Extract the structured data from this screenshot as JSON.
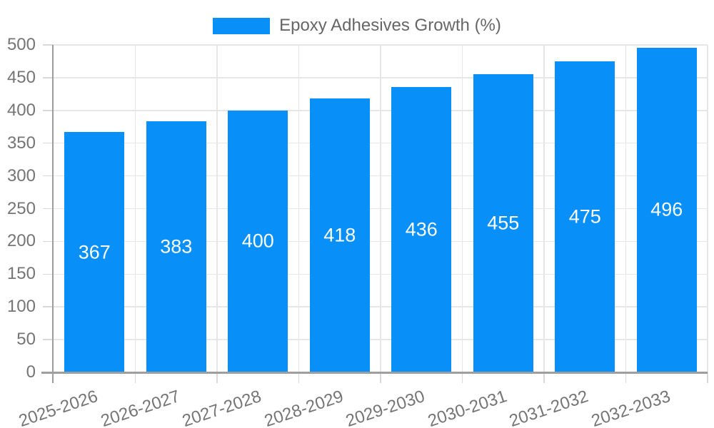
{
  "chart_data": {
    "type": "bar",
    "title": "",
    "legend": {
      "label": "Epoxy Adhesives Growth (%)",
      "position": "top"
    },
    "categories": [
      "2025-2026",
      "2026-2027",
      "2027-2028",
      "2028-2029",
      "2029-2030",
      "2030-2031",
      "2031-2032",
      "2032-2033"
    ],
    "series": [
      {
        "name": "Epoxy Adhesives Growth (%)",
        "values": [
          367,
          383,
          400,
          418,
          436,
          455,
          475,
          496
        ]
      }
    ],
    "bar_value_labels": [
      367,
      383,
      400,
      418,
      436,
      455,
      475,
      496
    ],
    "xlabel": "",
    "ylabel": "",
    "ylim": [
      0,
      500
    ],
    "ytick_step": 50,
    "grid": true,
    "colors": {
      "bar": "#0890F8",
      "grid": "#e6e6e6",
      "axis": "#9e9e9e",
      "tick": "#d9d9d9",
      "axis_label_text": "#757575",
      "legend_text": "#666666",
      "value_label_text": "#ffffff",
      "background": "#ffffff"
    }
  }
}
